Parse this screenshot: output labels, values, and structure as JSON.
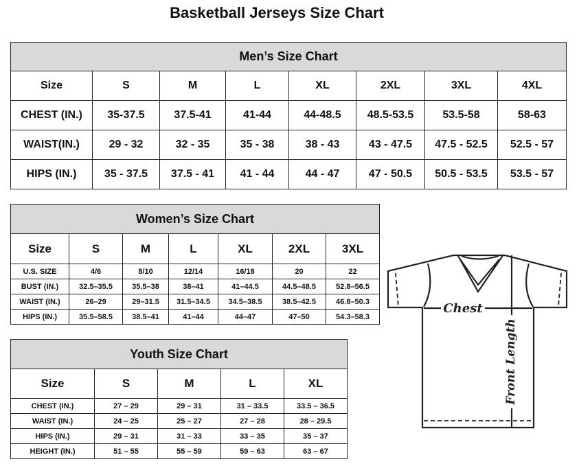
{
  "title": "Basketball Jerseys Size Chart",
  "men": {
    "title": "Men’s Size Chart",
    "rows": [
      [
        "Size",
        "S",
        "M",
        "L",
        "XL",
        "2XL",
        "3XL",
        "4XL"
      ],
      [
        "CHEST (IN.)",
        "35-37.5",
        "37.5-41",
        "41-44",
        "44-48.5",
        "48.5-53.5",
        "53.5-58",
        "58-63"
      ],
      [
        "WAIST(IN.)",
        "29 - 32",
        "32 - 35",
        "35 - 38",
        "38 - 43",
        "43 - 47.5",
        "47.5 - 52.5",
        "52.5 - 57"
      ],
      [
        "HIPS (IN.)",
        "35 - 37.5",
        "37.5 - 41",
        "41 - 44",
        "44 - 47",
        "47 - 50.5",
        "50.5 - 53.5",
        "53.5 - 57"
      ]
    ]
  },
  "women": {
    "title": "Women’s Size Chart",
    "rows": [
      [
        "Size",
        "S",
        "M",
        "L",
        "XL",
        "2XL",
        "3XL"
      ],
      [
        "U.S. SIZE",
        "4/6",
        "8/10",
        "12/14",
        "16/18",
        "20",
        "22"
      ],
      [
        "BUST (IN.)",
        "32.5–35.5",
        "35.5–38",
        "38–41",
        "41–44.5",
        "44.5–48.5",
        "52.8–56.5"
      ],
      [
        "WAIST (IN.)",
        "26–29",
        "29–31.5",
        "31.5–34.5",
        "34.5–38.5",
        "38.5–42.5",
        "46.8–50.3"
      ],
      [
        "HIPS (IN.)",
        "35.5–58.5",
        "38.5–41",
        "41–44",
        "44–47",
        "47–50",
        "54.3–58.3"
      ]
    ]
  },
  "youth": {
    "title": "Youth Size Chart",
    "rows": [
      [
        "Size",
        "S",
        "M",
        "L",
        "XL"
      ],
      [
        "CHEST (IN.)",
        "27 – 29",
        "29 – 31",
        "31 – 33.5",
        "33.5 – 36.5"
      ],
      [
        "WAIST (IN.)",
        "24 – 25",
        "25 – 27",
        "27 – 28",
        "28 – 29.5"
      ],
      [
        "HIPS (IN.)",
        "29 – 31",
        "31 – 33",
        "33 – 35",
        "35 – 37"
      ],
      [
        "HEIGHT (IN.)",
        "51 – 55",
        "55 – 59",
        "59 – 63",
        "63 – 67"
      ]
    ]
  },
  "diagram": {
    "chest_label": "Chest",
    "length_label": "Front Length"
  }
}
